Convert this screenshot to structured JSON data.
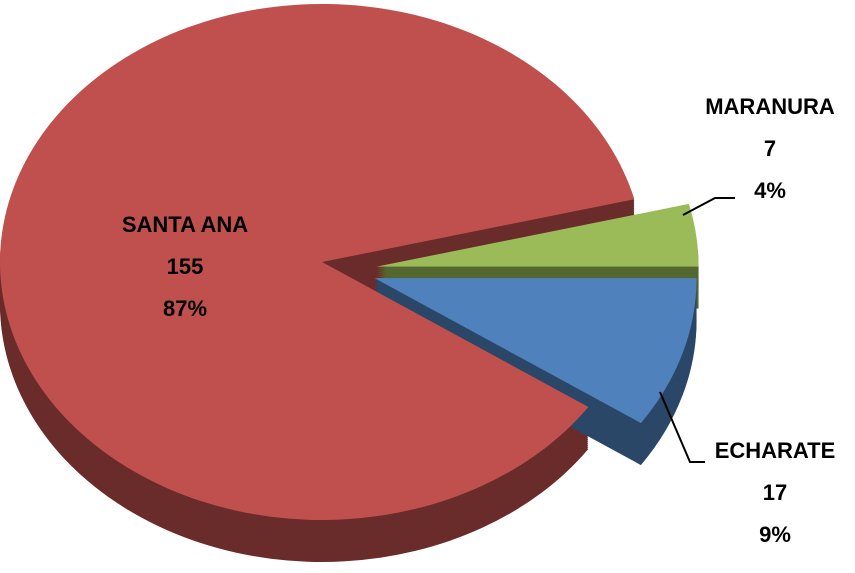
{
  "chart_data": {
    "type": "pie",
    "categories": [
      "SANTA ANA",
      "MARANURA",
      "ECHARATE"
    ],
    "values": [
      155,
      7,
      17
    ],
    "percent_labels": [
      "87%",
      "4%",
      "9%"
    ],
    "colors": [
      "#c0504d",
      "#9bbb59",
      "#4f81bd"
    ]
  }
}
